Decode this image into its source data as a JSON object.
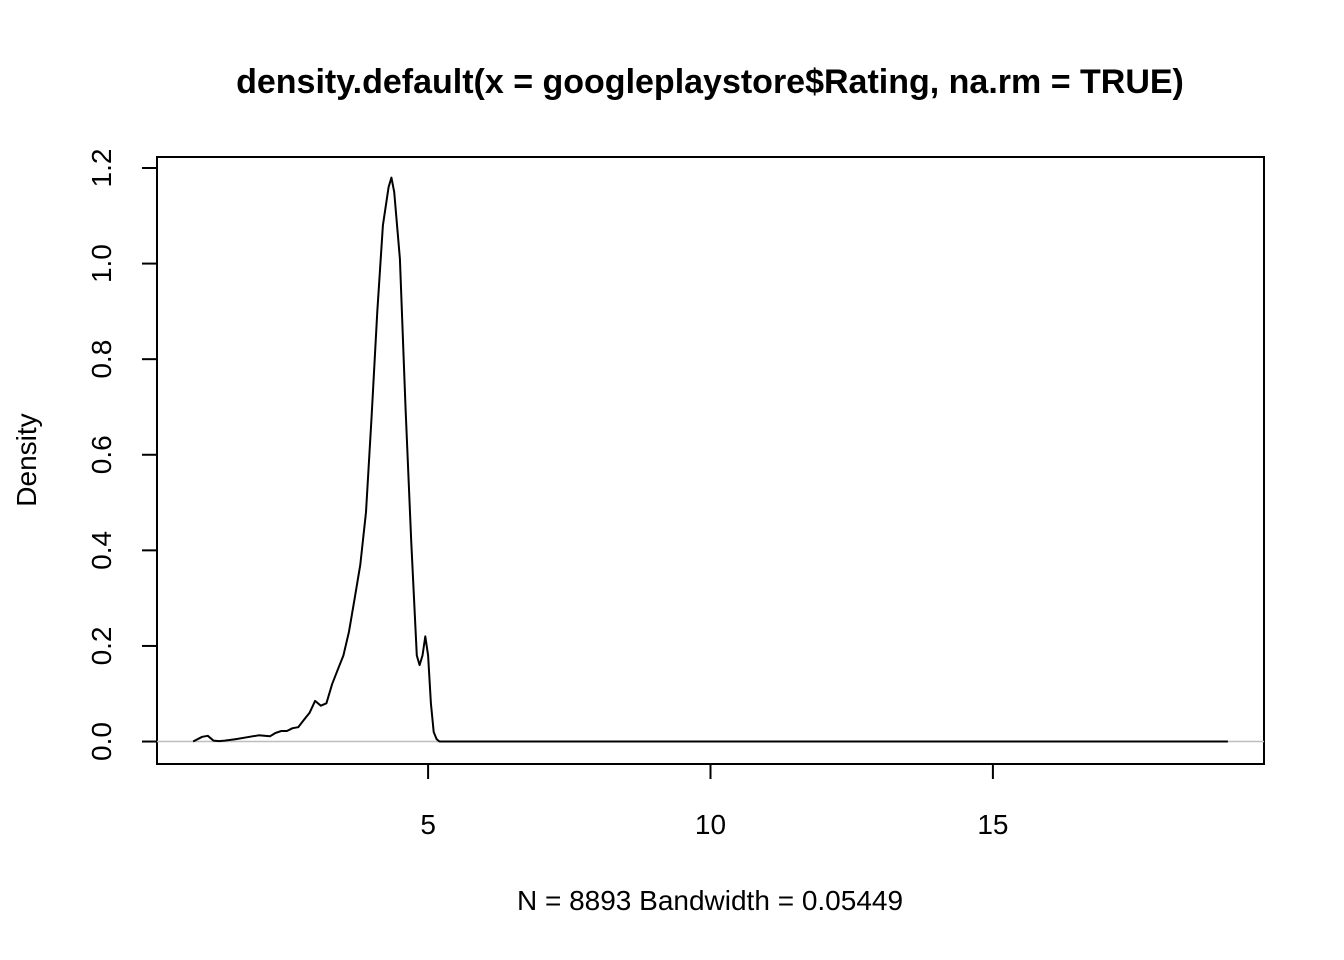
{
  "chart_data": {
    "type": "line",
    "title": "density.default(x = googleplaystore$Rating, na.rm = TRUE)",
    "xlabel": "N = 8893   Bandwidth = 0.05449",
    "ylabel": "Density",
    "xlim": [
      0.2,
      19.8
    ],
    "ylim": [
      -0.047,
      1.223
    ],
    "x_ticks": [
      5,
      10,
      15
    ],
    "y_ticks": [
      0.0,
      0.2,
      0.4,
      0.6,
      0.8,
      1.0,
      1.2
    ],
    "x_tick_labels": [
      "5",
      "10",
      "15"
    ],
    "y_tick_labels": [
      "0.0",
      "0.2",
      "0.4",
      "0.6",
      "0.8",
      "1.0",
      "1.2"
    ],
    "baseline": 0,
    "grid": false,
    "series": [
      {
        "x": [
          0.84,
          1.0,
          1.1,
          1.2,
          1.3,
          1.4,
          1.6,
          1.8,
          2.0,
          2.1,
          2.2,
          2.3,
          2.4,
          2.5,
          2.6,
          2.7,
          2.8,
          2.9,
          3.0,
          3.1,
          3.2,
          3.3,
          3.4,
          3.5,
          3.6,
          3.7,
          3.8,
          3.9,
          4.0,
          4.1,
          4.2,
          4.3,
          4.35,
          4.4,
          4.5,
          4.6,
          4.7,
          4.8,
          4.85,
          4.9,
          4.95,
          5.0,
          5.05,
          5.1,
          5.15,
          5.2,
          5.3,
          5.5,
          7.0,
          10.0,
          15.0,
          19.16
        ],
        "y": [
          0.0,
          0.01,
          0.012,
          0.002,
          0.001,
          0.002,
          0.005,
          0.009,
          0.013,
          0.012,
          0.011,
          0.018,
          0.022,
          0.022,
          0.028,
          0.03,
          0.045,
          0.06,
          0.085,
          0.075,
          0.08,
          0.12,
          0.15,
          0.18,
          0.23,
          0.3,
          0.37,
          0.48,
          0.68,
          0.9,
          1.08,
          1.16,
          1.18,
          1.15,
          1.01,
          0.7,
          0.42,
          0.18,
          0.16,
          0.18,
          0.22,
          0.18,
          0.08,
          0.02,
          0.005,
          0.0,
          0.0,
          0.0,
          0.0,
          0.0,
          0.0,
          0.0
        ]
      }
    ]
  }
}
